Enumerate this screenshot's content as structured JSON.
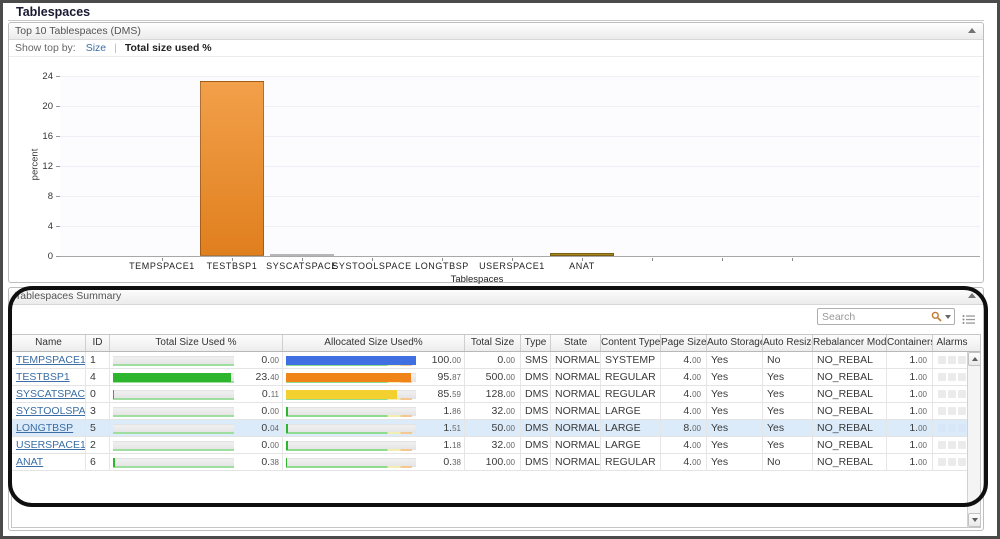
{
  "window": {
    "title": "Tablespaces"
  },
  "colors": {
    "accent_orange": "#e8892b",
    "bar_green": "#2db52d",
    "bar_blue": "#3f6fe0",
    "bar_yellow": "#f2d030",
    "bar_purple": "#5b55a5",
    "bar_olive": "#a8851f",
    "link_blue": "#3a6ea5",
    "selected_row": "#dcebfa"
  },
  "top_panel": {
    "title": "Top 10 Tablespaces (DMS)",
    "collapse_icon": "up-arrow",
    "show_top_by": {
      "label": "Show top by:",
      "options": [
        {
          "label": "Size",
          "selected": false
        },
        {
          "label": "Total size used %",
          "selected": true
        }
      ]
    }
  },
  "chart_data": {
    "type": "bar",
    "title": "Top 10 Tablespaces (DMS)",
    "xlabel": "Tablespaces",
    "ylabel": "percent",
    "ylim": [
      0,
      24
    ],
    "yticks": [
      0,
      4,
      8,
      12,
      16,
      20,
      24
    ],
    "grid": true,
    "legend": false,
    "slots_total": 10,
    "categories": [
      "TEMPSPACE1",
      "TESTBSP1",
      "SYSCATSPACE",
      "SYSTOOLSPACE",
      "LONGTBSP",
      "USERSPACE1",
      "ANAT"
    ],
    "values": [
      0.0,
      23.4,
      0.11,
      0.0,
      0.04,
      0.0,
      0.38
    ],
    "bar_colors": [
      "#3f6fe0",
      "#e8892b",
      "#5b55a5",
      "#9b9b9b",
      "#9b9b9b",
      "#9b9b9b",
      "#a8851f"
    ]
  },
  "summary_panel": {
    "title": "Tablespaces Summary",
    "collapse_icon": "up-arrow",
    "search": {
      "placeholder": "Search",
      "icons": [
        "magnifier-icon",
        "dropdown-caret-icon"
      ]
    },
    "grid_button_icon": "column-chooser-icon",
    "table": {
      "columns": [
        "Name",
        "ID",
        "Total Size Used %",
        "Allocated Size Used%",
        "Total Size",
        "Type",
        "State",
        "Content Type",
        "Page Size",
        "Auto Storage",
        "Auto Resize",
        "Rebalancer Mode",
        "Containers",
        "Alarms"
      ],
      "rows": [
        {
          "name": "TEMPSPACE1",
          "id": "1",
          "total_size_used_pct": "0.00",
          "allocated_size_used_pct": "100.00",
          "alloc_color": "#3f6fe0",
          "total_size": "0.00",
          "type": "SMS",
          "state": "NORMAL",
          "content_type": "SYSTEMP",
          "page_size": "4.00",
          "auto_storage": "Yes",
          "auto_resize": "No",
          "rebalancer_mode": "NO_REBAL",
          "containers": "1.00",
          "selected": false
        },
        {
          "name": "TESTBSP1",
          "id": "4",
          "total_size_used_pct": "23.40",
          "allocated_size_used_pct": "95.87",
          "alloc_color": "#f08418",
          "total_size": "500.00",
          "type": "DMS",
          "state": "NORMAL",
          "content_type": "REGULAR",
          "page_size": "4.00",
          "auto_storage": "Yes",
          "auto_resize": "Yes",
          "rebalancer_mode": "NO_REBAL",
          "containers": "1.00",
          "selected": false
        },
        {
          "name": "SYSCATSPACE",
          "id": "0",
          "total_size_used_pct": "0.11",
          "allocated_size_used_pct": "85.59",
          "alloc_color": "#f2d030",
          "total_size": "128.00",
          "type": "DMS",
          "state": "NORMAL",
          "content_type": "REGULAR",
          "page_size": "4.00",
          "auto_storage": "Yes",
          "auto_resize": "Yes",
          "rebalancer_mode": "NO_REBAL",
          "containers": "1.00",
          "selected": false
        },
        {
          "name": "SYSTOOLSPACE",
          "id": "3",
          "total_size_used_pct": "0.00",
          "allocated_size_used_pct": "1.86",
          "alloc_color": "#2db52d",
          "total_size": "32.00",
          "type": "DMS",
          "state": "NORMAL",
          "content_type": "LARGE",
          "page_size": "4.00",
          "auto_storage": "Yes",
          "auto_resize": "Yes",
          "rebalancer_mode": "NO_REBAL",
          "containers": "1.00",
          "selected": false
        },
        {
          "name": "LONGTBSP",
          "id": "5",
          "total_size_used_pct": "0.04",
          "allocated_size_used_pct": "1.51",
          "alloc_color": "#2db52d",
          "total_size": "50.00",
          "type": "DMS",
          "state": "NORMAL",
          "content_type": "LARGE",
          "page_size": "8.00",
          "auto_storage": "Yes",
          "auto_resize": "Yes",
          "rebalancer_mode": "NO_REBAL",
          "containers": "1.00",
          "selected": true
        },
        {
          "name": "USERSPACE1",
          "id": "2",
          "total_size_used_pct": "0.00",
          "allocated_size_used_pct": "1.18",
          "alloc_color": "#2db52d",
          "total_size": "32.00",
          "type": "DMS",
          "state": "NORMAL",
          "content_type": "LARGE",
          "page_size": "4.00",
          "auto_storage": "Yes",
          "auto_resize": "Yes",
          "rebalancer_mode": "NO_REBAL",
          "containers": "1.00",
          "selected": false
        },
        {
          "name": "ANAT",
          "id": "6",
          "total_size_used_pct": "0.38",
          "allocated_size_used_pct": "0.38",
          "alloc_color": "#2db52d",
          "total_size": "100.00",
          "type": "DMS",
          "state": "NORMAL",
          "content_type": "REGULAR",
          "page_size": "4.00",
          "auto_storage": "Yes",
          "auto_resize": "No",
          "rebalancer_mode": "NO_REBAL",
          "containers": "1.00",
          "selected": false
        }
      ],
      "alarm_slots_per_row": 3
    }
  }
}
